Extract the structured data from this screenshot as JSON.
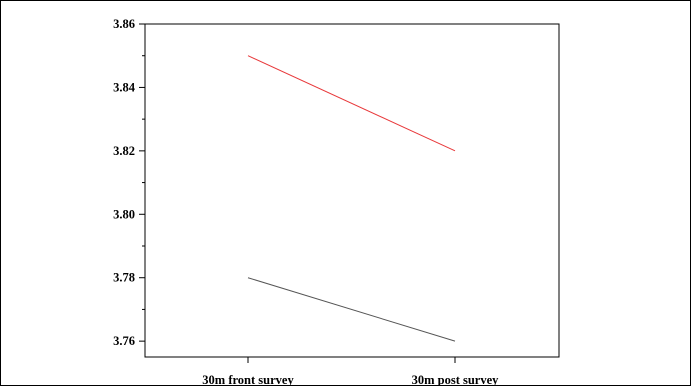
{
  "chart_data": {
    "type": "line",
    "categories": [
      "30m front survey",
      "30m post survey"
    ],
    "series": [
      {
        "values": [
          3.85,
          3.82
        ],
        "color": "#e8383a"
      },
      {
        "values": [
          3.78,
          3.76
        ],
        "color": "#555555"
      }
    ],
    "ylim": [
      3.755,
      3.86
    ],
    "yticks": [
      3.76,
      3.78,
      3.8,
      3.82,
      3.84,
      3.86
    ],
    "ytick_labels": [
      "3.76",
      "3.78",
      "3.80",
      "3.82",
      "3.84",
      "3.86"
    ],
    "title": "",
    "xlabel": "",
    "ylabel": "",
    "grid": false,
    "legend": "none"
  }
}
